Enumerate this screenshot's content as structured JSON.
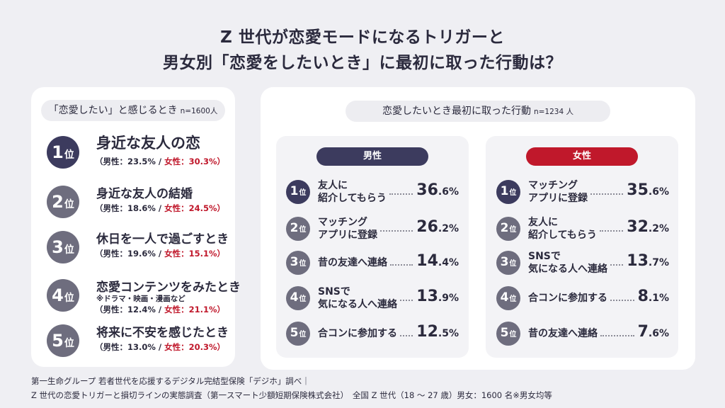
{
  "title_line1": "Z 世代が恋愛モードになるトリガーと",
  "title_line2": "男女別「恋愛をしたいとき」に最初に取った行動は？",
  "colors": {
    "navy": "#3c3b5e",
    "gray_rank": "#6e6d7e",
    "female_red": "#c0182b",
    "background": "#efeff3"
  },
  "chart_data": [
    {
      "type": "table",
      "title": "「恋愛したい」と感じるとき",
      "n_label": "n=1600人",
      "rank_suffix": "位",
      "items": [
        {
          "rank": "1",
          "label": "身近な友人の恋",
          "male_text": "（男性：23.5% / ",
          "female_text": "女性：30.3%）",
          "male": 23.5,
          "female": 30.3,
          "note": ""
        },
        {
          "rank": "2",
          "label": "身近な友人の結婚",
          "male_text": "（男性：18.6% / ",
          "female_text": "女性：24.5%）",
          "male": 18.6,
          "female": 24.5,
          "note": ""
        },
        {
          "rank": "3",
          "label": "休日を一人で過ごすとき",
          "male_text": "（男性：19.6% / ",
          "female_text": "女性：15.1%）",
          "male": 19.6,
          "female": 15.1,
          "note": ""
        },
        {
          "rank": "4",
          "label": "恋愛コンテンツをみたとき",
          "male_text": "（男性：12.4% / ",
          "female_text": "女性：21.1%）",
          "male": 12.4,
          "female": 21.1,
          "note": "※ドラマ・映画・漫画など"
        },
        {
          "rank": "5",
          "label": "将来に不安を感じたとき",
          "male_text": "（男性：13.0% / ",
          "female_text": "女性：20.3%）",
          "male": 13.0,
          "female": 20.3,
          "note": ""
        }
      ]
    },
    {
      "type": "table",
      "title": "恋愛したいとき最初に取った行動",
      "n_label": "n=1234 人",
      "rank_suffix": "位",
      "series": [
        {
          "name": "男性",
          "items": [
            {
              "rank": "1",
              "label1": "友人に",
              "label2": "紹介してもらう",
              "pct_int": "36",
              "pct_dec": ".6%",
              "value": 36.6
            },
            {
              "rank": "2",
              "label1": "マッチング",
              "label2": "アプリに登録",
              "pct_int": "26",
              "pct_dec": ".2%",
              "value": 26.2
            },
            {
              "rank": "3",
              "label1": "昔の友達へ連絡",
              "label2": "",
              "pct_int": "14",
              "pct_dec": ".4%",
              "value": 14.4
            },
            {
              "rank": "4",
              "label1": "SNSで",
              "label2": "気になる人へ連絡",
              "pct_int": "13",
              "pct_dec": ".9%",
              "value": 13.9
            },
            {
              "rank": "5",
              "label1": "合コンに参加する",
              "label2": "",
              "pct_int": "12",
              "pct_dec": ".5%",
              "value": 12.5
            }
          ]
        },
        {
          "name": "女性",
          "items": [
            {
              "rank": "1",
              "label1": "マッチング",
              "label2": "アプリに登録",
              "pct_int": "35",
              "pct_dec": ".6%",
              "value": 35.6
            },
            {
              "rank": "2",
              "label1": "友人に",
              "label2": "紹介してもらう",
              "pct_int": "32",
              "pct_dec": ".2%",
              "value": 32.2
            },
            {
              "rank": "3",
              "label1": "SNSで",
              "label2": "気になる人へ連絡",
              "pct_int": "13",
              "pct_dec": ".7%",
              "value": 13.7
            },
            {
              "rank": "4",
              "label1": "合コンに参加する",
              "label2": "",
              "pct_int": "8",
              "pct_dec": ".1%",
              "value": 8.1
            },
            {
              "rank": "5",
              "label1": "昔の友達へ連絡",
              "label2": "",
              "pct_int": "7",
              "pct_dec": ".6%",
              "value": 7.6
            }
          ]
        }
      ]
    }
  ],
  "footer_line1": "第一生命グループ 若者世代を応援するデジタル完結型保険「デジホ」調べ｜",
  "footer_line2": "Z 世代の恋愛トリガーと損切ラインの実態調査（第一スマート少額短期保険株式会社）　全国 Z 世代（18 ～ 27 歳）男女：1600 名※男女均等"
}
